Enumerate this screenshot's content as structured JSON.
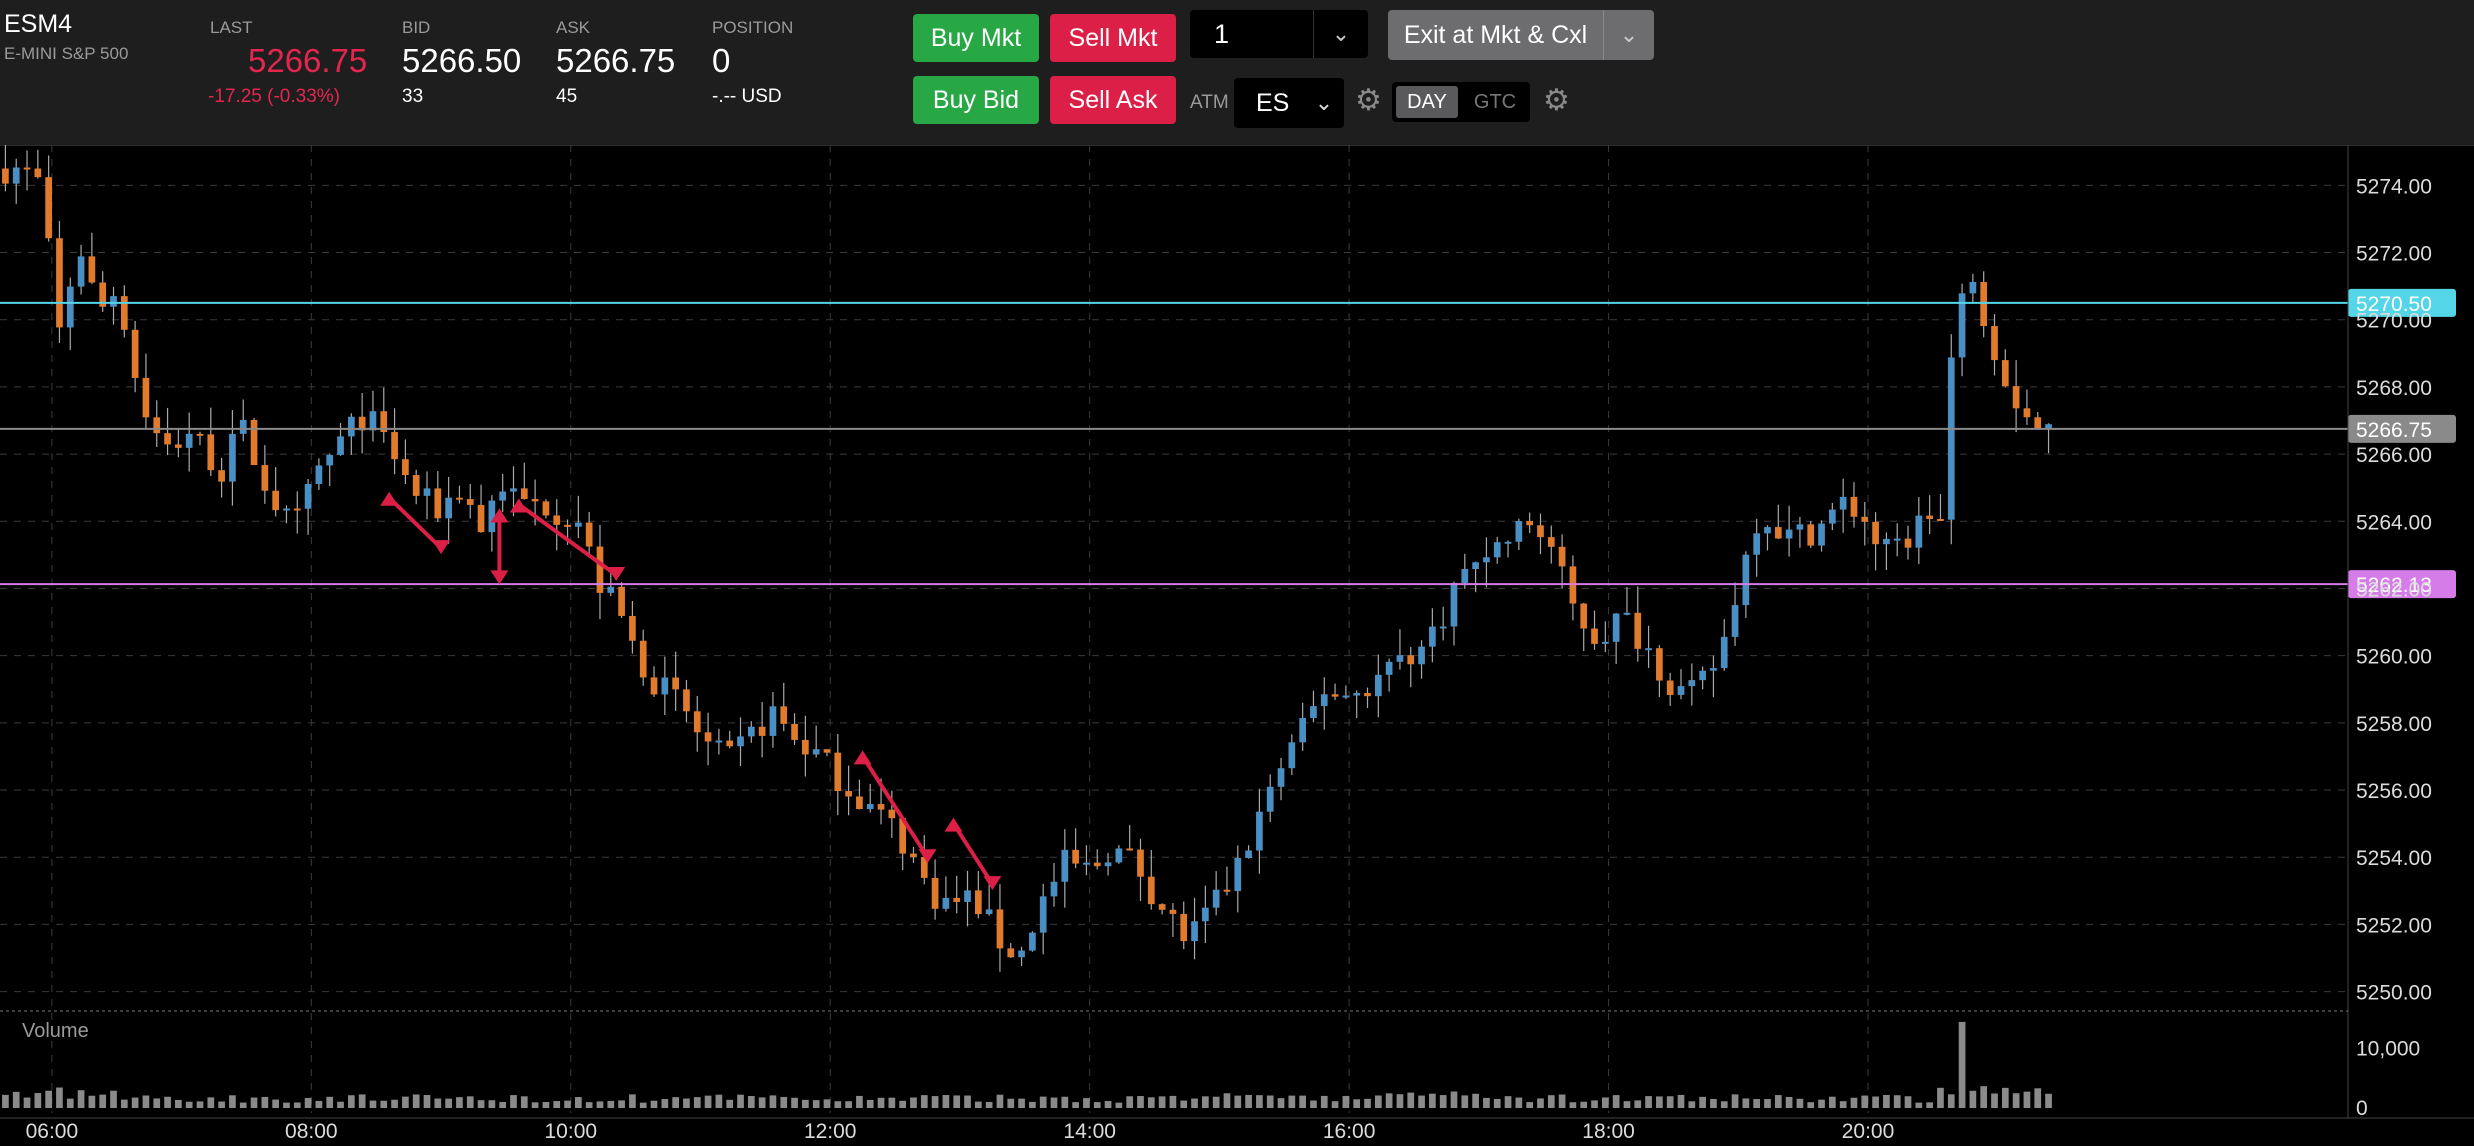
{
  "header": {
    "symbol": "ESM4",
    "description": "E-MINI S&P 500",
    "last": {
      "label": "LAST",
      "value": "5266.75",
      "change": "-17.25 (-0.33%)"
    },
    "bid": {
      "label": "BID",
      "value": "5266.50",
      "size": "33"
    },
    "ask": {
      "label": "ASK",
      "value": "5266.75",
      "size": "45"
    },
    "position": {
      "label": "POSITION",
      "value": "0",
      "pnl": "-.-- USD"
    }
  },
  "order": {
    "buy_mkt": "Buy Mkt",
    "sell_mkt": "Sell Mkt",
    "buy_bid": "Buy Bid",
    "sell_ask": "Sell Ask",
    "quantity": "1",
    "exit_label": "Exit at Mkt & Cxl",
    "atm_label": "ATM",
    "atm_value": "ES",
    "tif_day": "DAY",
    "tif_gtc": "GTC"
  },
  "colors": {
    "up": "#4a8fc4",
    "down": "#e07a2c",
    "price_line": "#55d6e8",
    "last_line": "#8a8a8a",
    "level_line": "#d57ce8",
    "trade_marker": "#dc1f46"
  },
  "chart_data": {
    "type": "candlestick",
    "x_ticks": [
      "06:00",
      "08:00",
      "10:00",
      "12:00",
      "14:00",
      "16:00",
      "18:00",
      "20:00"
    ],
    "y_ticks": [
      "5274.00",
      "5272.00",
      "5270.00",
      "5268.00",
      "5266.00",
      "5264.00",
      "5262.00",
      "5260.00",
      "5258.00",
      "5256.00",
      "5254.00",
      "5252.00",
      "5250.00"
    ],
    "ylim": [
      5249.6,
      5275.2
    ],
    "xlim": [
      5.6,
      23.7
    ],
    "grid": true,
    "price_lines": [
      {
        "label": "5270.50",
        "value": 5270.5,
        "color": "#55d6e8"
      },
      {
        "label": "5266.75",
        "value": 5266.75,
        "color": "#8a8a8a"
      },
      {
        "label": "5262.13",
        "value": 5262.13,
        "color": "#d57ce8"
      }
    ],
    "path": [
      [
        5.6,
        5274.5
      ],
      [
        5.8,
        5274.5
      ],
      [
        5.95,
        5274.0
      ],
      [
        6.1,
        5269.6
      ],
      [
        6.25,
        5272.3
      ],
      [
        6.4,
        5270.2
      ],
      [
        6.55,
        5271.0
      ],
      [
        6.7,
        5268.0
      ],
      [
        6.9,
        5266.0
      ],
      [
        7.1,
        5266.7
      ],
      [
        7.35,
        5265.5
      ],
      [
        7.5,
        5266.8
      ],
      [
        7.7,
        5265.0
      ],
      [
        7.9,
        5263.7
      ],
      [
        8.1,
        5265.5
      ],
      [
        8.3,
        5266.5
      ],
      [
        8.45,
        5267.2
      ],
      [
        8.65,
        5266.2
      ],
      [
        8.8,
        5265.0
      ],
      [
        9.0,
        5264.3
      ],
      [
        9.2,
        5265.0
      ],
      [
        9.35,
        5263.8
      ],
      [
        9.5,
        5265.2
      ],
      [
        9.65,
        5264.5
      ],
      [
        9.85,
        5264.5
      ],
      [
        10.1,
        5264.0
      ],
      [
        10.25,
        5262.2
      ],
      [
        10.4,
        5261.4
      ],
      [
        10.55,
        5260.0
      ],
      [
        10.7,
        5259.2
      ],
      [
        10.9,
        5258.5
      ],
      [
        11.05,
        5257.5
      ],
      [
        11.25,
        5256.8
      ],
      [
        11.45,
        5257.7
      ],
      [
        11.6,
        5258.3
      ],
      [
        11.75,
        5257.6
      ],
      [
        11.95,
        5257.0
      ],
      [
        12.2,
        5256.0
      ],
      [
        12.35,
        5255.5
      ],
      [
        12.5,
        5255.0
      ],
      [
        12.65,
        5254.2
      ],
      [
        12.8,
        5253.0
      ],
      [
        12.95,
        5252.6
      ],
      [
        13.15,
        5252.8
      ],
      [
        13.35,
        5251.5
      ],
      [
        13.5,
        5251.0
      ],
      [
        13.65,
        5252.5
      ],
      [
        13.85,
        5253.8
      ],
      [
        14.05,
        5253.6
      ],
      [
        14.2,
        5254.3
      ],
      [
        14.4,
        5253.8
      ],
      [
        14.6,
        5252.5
      ],
      [
        14.8,
        5251.5
      ],
      [
        15.0,
        5252.5
      ],
      [
        15.2,
        5253.8
      ],
      [
        15.45,
        5256.2
      ],
      [
        15.65,
        5257.5
      ],
      [
        15.85,
        5259.0
      ],
      [
        16.05,
        5258.8
      ],
      [
        16.25,
        5259.3
      ],
      [
        16.45,
        5260.0
      ],
      [
        16.65,
        5260.3
      ],
      [
        16.85,
        5262.0
      ],
      [
        17.05,
        5263.0
      ],
      [
        17.25,
        5263.4
      ],
      [
        17.45,
        5264.0
      ],
      [
        17.6,
        5263.2
      ],
      [
        17.75,
        5261.5
      ],
      [
        17.95,
        5260.5
      ],
      [
        18.15,
        5261.2
      ],
      [
        18.35,
        5260.2
      ],
      [
        18.55,
        5259.0
      ],
      [
        18.7,
        5258.8
      ],
      [
        18.9,
        5260.0
      ],
      [
        19.05,
        5262.3
      ],
      [
        19.2,
        5264.3
      ],
      [
        19.45,
        5263.5
      ],
      [
        19.65,
        5263.8
      ],
      [
        19.85,
        5264.5
      ],
      [
        20.0,
        5264.2
      ],
      [
        20.15,
        5263.0
      ],
      [
        20.35,
        5263.5
      ],
      [
        20.5,
        5264.3
      ],
      [
        20.6,
        5264.0
      ],
      [
        20.7,
        5269.8
      ],
      [
        20.85,
        5271.5
      ],
      [
        20.95,
        5270.0
      ],
      [
        21.05,
        5268.8
      ],
      [
        21.2,
        5267.5
      ],
      [
        21.3,
        5267.0
      ],
      [
        21.4,
        5266.75
      ]
    ],
    "trade_markers": [
      {
        "t0": 8.6,
        "p0": 5264.7,
        "t1": 9.0,
        "p1": 5263.2
      },
      {
        "t0": 9.45,
        "p0": 5264.2,
        "t1": 9.45,
        "p1": 5262.3
      },
      {
        "t0": 9.6,
        "p0": 5264.5,
        "t1": 10.35,
        "p1": 5262.4
      },
      {
        "t0": 12.25,
        "p0": 5257.0,
        "t1": 12.75,
        "p1": 5254.0
      },
      {
        "t0": 12.95,
        "p0": 5255.0,
        "t1": 13.25,
        "p1": 5253.2
      }
    ],
    "volume": {
      "label": "Volume",
      "y_ticks": [
        "10,000",
        "0"
      ],
      "ylim": [
        0,
        16000
      ],
      "peak": {
        "t": 20.7,
        "value": 14500
      }
    }
  }
}
